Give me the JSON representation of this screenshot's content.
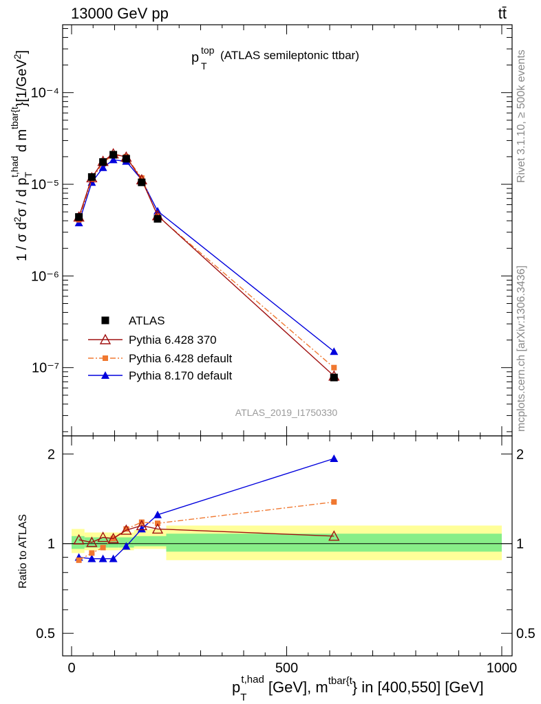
{
  "header": {
    "energy_label": "13000 GeV pp",
    "process_label": "tt̄"
  },
  "side_text": {
    "rivet": "Rivet 3.1.10, ≥ 500k events",
    "mcplots": "mcplots.cern.ch [arXiv:1306.3436]"
  },
  "watermark": "ATLAS_2019_I1750330",
  "title": {
    "main": "p",
    "sup": "top",
    "sub": "T",
    "rest": "(ATLAS semileptonic ttbar)"
  },
  "ylabel_main": "1 / σ d²σ / d p_T^{t,had} d m^{tbar{t}} [1/GeV²]",
  "ylabel_ratio": "Ratio to ATLAS",
  "xlabel": "p_T^{t,had} [GeV], m^{tbar{t}} in [400,550] [GeV]",
  "colors": {
    "atlas": "#000000",
    "py6_370": "#a01010",
    "py6_default": "#f07830",
    "py8_default": "#0000dd",
    "band_outer": "#ffff99",
    "band_inner": "#88ee88"
  },
  "chart_data": {
    "type": "line",
    "x_axis": {
      "range": [
        0,
        1000
      ],
      "ticks": [
        0,
        500,
        1000
      ]
    },
    "main": {
      "yscale": "log",
      "ylim": [
        1.8e-08,
        0.00055
      ],
      "yticks": [
        {
          "value": 1e-07,
          "label": "10⁻⁷"
        },
        {
          "value": 1e-06,
          "label": "10⁻⁶"
        },
        {
          "value": 1e-05,
          "label": "10⁻⁵"
        },
        {
          "value": 0.0001,
          "label": "10⁻⁴"
        }
      ]
    },
    "ratio": {
      "yscale": "log",
      "ylim": [
        0.42,
        2.3
      ],
      "yticks": [
        {
          "value": 0.5,
          "label": "0.5"
        },
        {
          "value": 1,
          "label": "1"
        },
        {
          "value": 2,
          "label": "2"
        }
      ]
    },
    "x": [
      17,
      47,
      73,
      97,
      127,
      163,
      200,
      610
    ],
    "series": [
      {
        "name": "ATLAS",
        "marker": "square",
        "line": "none",
        "values": [
          4.4e-06,
          1.2e-05,
          1.75e-05,
          2.1e-05,
          1.9e-05,
          1.05e-05,
          4.2e-06,
          7.8e-08
        ],
        "ratio": [
          1,
          1,
          1,
          1,
          1,
          1,
          1,
          1
        ]
      },
      {
        "name": "Pythia 6.428 370",
        "marker": "open-triangle",
        "line": "solid",
        "values": [
          4.4e-06,
          1.18e-05,
          1.78e-05,
          2.15e-05,
          1.98e-05,
          1.12e-05,
          4.55e-06,
          8.1e-08
        ],
        "ratio": [
          1.03,
          1.01,
          1.05,
          1.04,
          1.11,
          1.15,
          1.12,
          1.06
        ]
      },
      {
        "name": "Pythia 6.428 default",
        "marker": "square-small",
        "line": "dashdot",
        "values": [
          4.1e-06,
          1.13e-05,
          1.72e-05,
          2.1e-05,
          2e-05,
          1.17e-05,
          4.5e-06,
          1e-07
        ],
        "ratio": [
          0.88,
          0.93,
          0.97,
          1.04,
          1.12,
          1.18,
          1.17,
          1.38
        ]
      },
      {
        "name": "Pythia 8.170 default",
        "marker": "triangle",
        "line": "solid",
        "values": [
          3.8e-06,
          1.05e-05,
          1.52e-05,
          1.85e-05,
          1.78e-05,
          1.12e-05,
          5.1e-06,
          1.5e-07
        ],
        "ratio": [
          0.9,
          0.89,
          0.89,
          0.89,
          0.98,
          1.12,
          1.25,
          1.93
        ]
      }
    ],
    "uncertainty_band": {
      "edges": [
        0,
        30,
        60,
        85,
        110,
        145,
        180,
        220,
        1000
      ],
      "outer": [
        [
          0.93,
          1.12
        ],
        [
          0.95,
          1.09
        ],
        [
          0.95,
          1.09
        ],
        [
          0.95,
          1.09
        ],
        [
          0.95,
          1.09
        ],
        [
          0.96,
          1.11
        ],
        [
          0.96,
          1.12
        ],
        [
          0.88,
          1.15
        ]
      ],
      "inner": [
        [
          0.96,
          1.06
        ],
        [
          0.97,
          1.05
        ],
        [
          0.97,
          1.05
        ],
        [
          0.97,
          1.05
        ],
        [
          0.97,
          1.05
        ],
        [
          0.98,
          1.06
        ],
        [
          0.98,
          1.06
        ],
        [
          0.94,
          1.08
        ]
      ]
    }
  }
}
